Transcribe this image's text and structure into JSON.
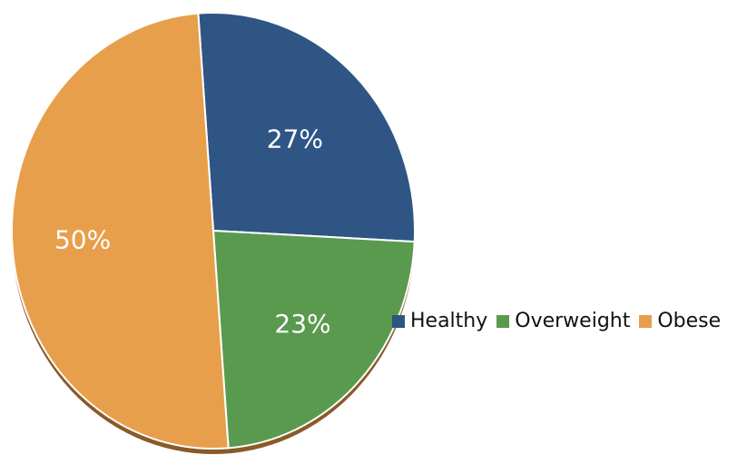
{
  "chart_data": {
    "type": "pie",
    "categories": [
      "Healthy",
      "Overweight",
      "Obese"
    ],
    "values": [
      27,
      23,
      50
    ],
    "labels": [
      "27%",
      "23%",
      "50%"
    ],
    "colors": [
      "#2e5584",
      "#5a9a4f",
      "#e89f4b"
    ],
    "shadow_color": "#8a5a28",
    "legend": {
      "placement": "right",
      "entries": [
        {
          "label": "Healthy",
          "color": "#2e5584"
        },
        {
          "label": "Overweight",
          "color": "#5a9a4f"
        },
        {
          "label": "Obese",
          "color": "#e89f4b"
        }
      ]
    }
  }
}
